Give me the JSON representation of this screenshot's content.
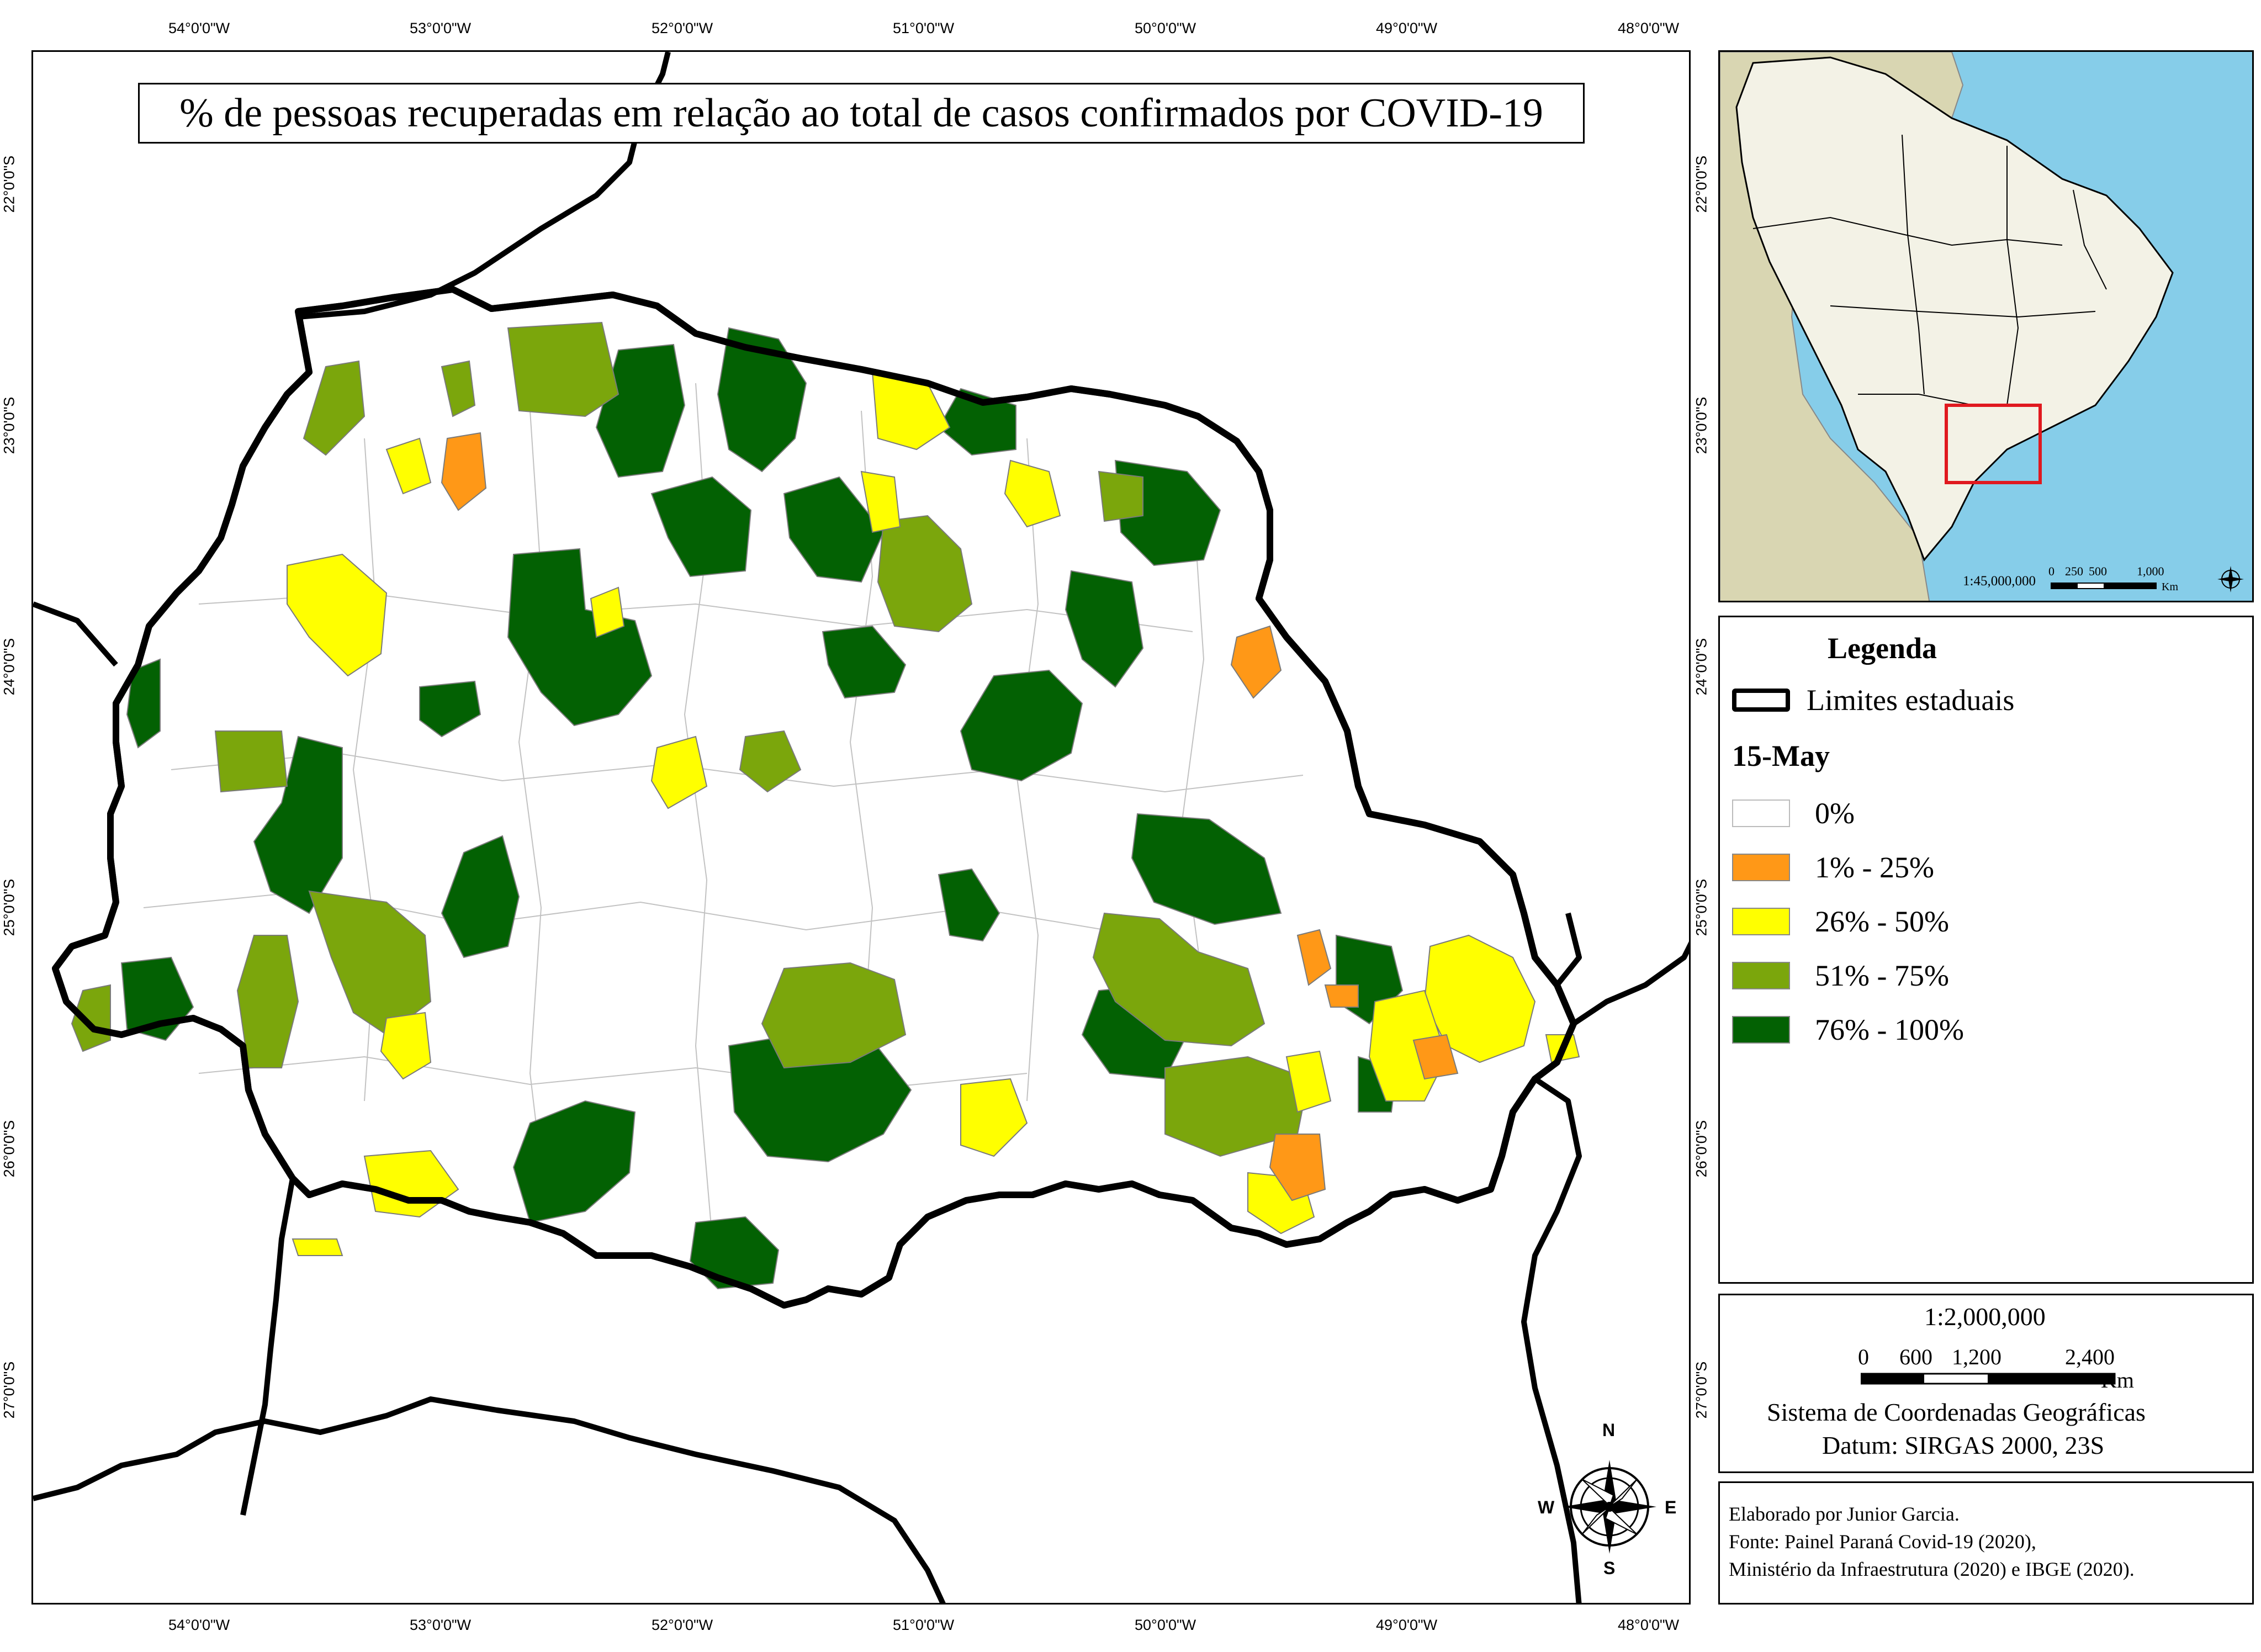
{
  "title": "% de pessoas recuperadas em relação ao total de casos confirmados por COVID-19",
  "coordinates": {
    "longitude_labels": [
      "54°0'0\"W",
      "53°0'0\"W",
      "52°0'0\"W",
      "51°0'0\"W",
      "50°0'0\"W",
      "49°0'0\"W",
      "48°0'0\"W"
    ],
    "latitude_labels": [
      "22°0'0\"S",
      "23°0'0\"S",
      "24°0'0\"S",
      "25°0'0\"S",
      "26°0'0\"S",
      "27°0'0\"S"
    ]
  },
  "inset": {
    "scale_ratio": "1:45,000,000",
    "scale_ticks": [
      "0",
      "250",
      "500",
      "1,000"
    ],
    "scale_unit": "Km",
    "colors": {
      "ocean": "#86cde9",
      "brazil": "#f3f2e6",
      "neighbors": "#d9d6b2",
      "highlight": "#e0191f"
    }
  },
  "legend": {
    "title": "Legenda",
    "boundary_label": "Limites estaduais",
    "date_label": "15-May",
    "classes": [
      {
        "label": "0%",
        "color": "#ffffff"
      },
      {
        "label": "1% - 25%",
        "color": "#ff9817"
      },
      {
        "label": "26% - 50%",
        "color": "#ffff00"
      },
      {
        "label": "51% - 75%",
        "color": "#7ba60c"
      },
      {
        "label": "76% - 100%",
        "color": "#036103"
      }
    ]
  },
  "scale": {
    "ratio": "1:2,000,000",
    "ticks": [
      "0",
      "600",
      "1,200",
      "2,400"
    ],
    "unit": "Km",
    "crs_line1": "Sistema de Coordenadas Geográficas",
    "crs_line2": "Datum: SIRGAS 2000, 23S"
  },
  "credits": {
    "line1": "Elaborado por Junior Garcia.",
    "line2": "Fonte: Painel Paraná Covid-19 (2020),",
    "line3": "Ministério da Infraestrutura (2020) e IBGE (2020)."
  },
  "north_arrow": {
    "n": "N",
    "s": "S",
    "e": "E",
    "w": "W"
  }
}
